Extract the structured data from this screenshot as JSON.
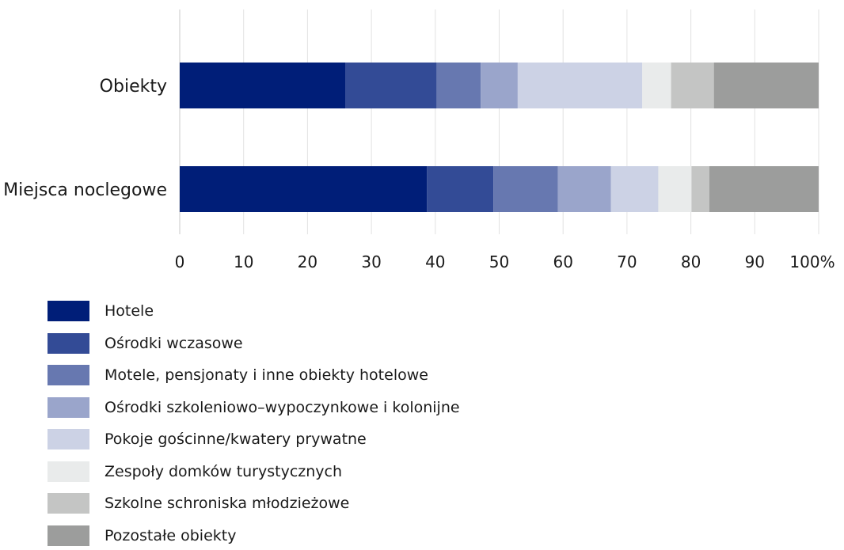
{
  "chart_data": {
    "type": "bar",
    "orientation": "horizontal",
    "stacked": true,
    "categories": [
      "Obiekty",
      "Miejsca noclegowe"
    ],
    "series": [
      {
        "name": "Hotele",
        "color": "#001e78",
        "values": [
          25.9,
          38.7
        ]
      },
      {
        "name": "Ośrodki wczasowe",
        "color": "#334b96",
        "values": [
          14.3,
          10.4
        ]
      },
      {
        "name": "Motele, pensjonaty i inne obiekty hotelowe",
        "color": "#6778b0",
        "values": [
          6.9,
          10.1
        ]
      },
      {
        "name": "Ośrodki szkoleniowo–wypoczynkowe i kolonijne",
        "color": "#9aa5cb",
        "values": [
          5.8,
          8.3
        ]
      },
      {
        "name": "Pokoje gościnne/kwatery prywatne",
        "color": "#ccd2e5",
        "values": [
          19.5,
          7.4
        ]
      },
      {
        "name": "Zespoły domków turystycznych",
        "color": "#e9ebeb",
        "values": [
          4.5,
          5.2
        ]
      },
      {
        "name": "Szkolne schroniska młodzieżowe",
        "color": "#c4c5c4",
        "values": [
          6.7,
          2.8
        ]
      },
      {
        "name": "Pozostałe obiekty",
        "color": "#9c9d9c",
        "values": [
          16.4,
          17.1
        ]
      }
    ],
    "xlim": [
      0,
      100
    ],
    "xticks": [
      "0",
      "10",
      "20",
      "30",
      "40",
      "50",
      "60",
      "70",
      "80",
      "90",
      "100%"
    ],
    "grid": true,
    "legend_position": "bottom"
  }
}
